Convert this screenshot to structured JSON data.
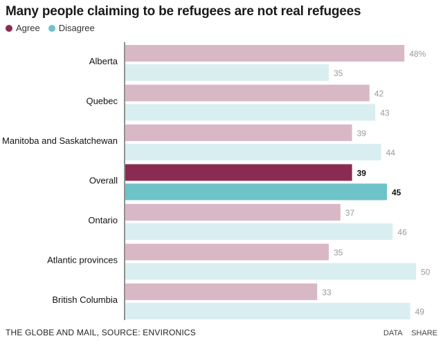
{
  "title": "Many people claiming to be refugees are not real refugees",
  "legend": {
    "agree_label": "Agree",
    "disagree_label": "Disagree"
  },
  "colors": {
    "agree": "#d9b8c6",
    "disagree": "#d9eef0",
    "agree_highlight": "#8a2b52",
    "disagree_highlight": "#6ec3c8",
    "label_muted": "#999999",
    "label_highlight": "#111111"
  },
  "footer": {
    "source": "THE GLOBE AND MAIL, SOURCE: ENVIRONICS",
    "data_link": "DATA",
    "share_link": "SHARE"
  },
  "chart_data": {
    "type": "bar",
    "orientation": "horizontal",
    "title": "Many people claiming to be refugees are not real refugees",
    "categories": [
      "Alberta",
      "Quebec",
      "Manitoba and Saskatchewan",
      "Overall",
      "Ontario",
      "Atlantic provinces",
      "British Columbia"
    ],
    "highlight_category": "Overall",
    "series": [
      {
        "name": "Agree",
        "values": [
          48,
          42,
          39,
          39,
          37,
          35,
          33
        ],
        "labels": [
          "48%",
          "42",
          "39",
          "39",
          "37",
          "35",
          "33"
        ]
      },
      {
        "name": "Disagree",
        "values": [
          35,
          43,
          44,
          45,
          46,
          50,
          49
        ],
        "labels": [
          "35",
          "43",
          "44",
          "45",
          "46",
          "50",
          "49"
        ]
      }
    ],
    "xlim": [
      0,
      50
    ],
    "grid": false,
    "legend_position": "top-left"
  }
}
